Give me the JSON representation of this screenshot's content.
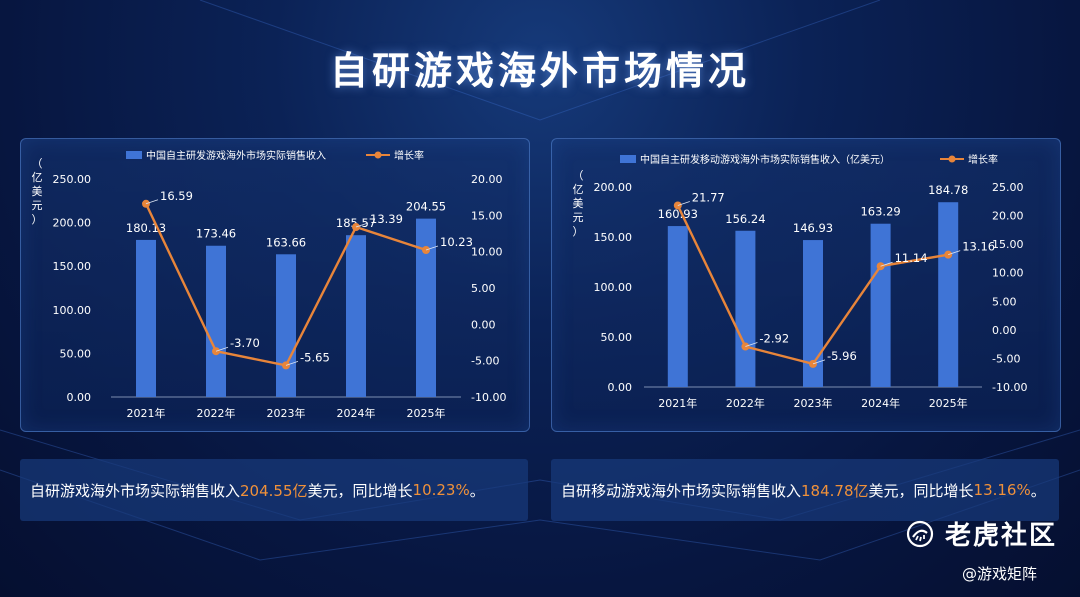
{
  "page": {
    "title": "自研游戏海外市场情况"
  },
  "chart_data": [
    {
      "type": "bar",
      "categories": [
        "2021年",
        "2022年",
        "2023年",
        "2024年",
        "2025年"
      ],
      "series": [
        {
          "name": "中国自主研发游戏海外市场实际销售收入",
          "type": "bar",
          "axis": "left",
          "values": [
            180.13,
            173.46,
            163.66,
            185.57,
            204.55
          ],
          "color": "#3f74d6"
        },
        {
          "name": "增长率",
          "type": "line",
          "axis": "right",
          "values": [
            16.59,
            -3.7,
            -5.65,
            13.39,
            10.23
          ],
          "color": "#e8853a"
        }
      ],
      "ylabel": "（亿美元）",
      "ylim": [
        0,
        250
      ],
      "yticks": [
        "0.00",
        "50.00",
        "100.00",
        "150.00",
        "200.00",
        "250.00"
      ],
      "y2lim": [
        -10,
        20
      ],
      "y2ticks": [
        "-10.00",
        "-5.00",
        "0.00",
        "5.00",
        "10.00",
        "15.00",
        "20.00"
      ],
      "bar_labels": [
        "180.13",
        "173.46",
        "163.66",
        "185.57",
        "204.55"
      ],
      "line_labels": [
        "16.59",
        "-3.70",
        "-5.65",
        "13.39",
        "10.23"
      ],
      "legend_position": "top"
    },
    {
      "type": "bar",
      "categories": [
        "2021年",
        "2022年",
        "2023年",
        "2024年",
        "2025年"
      ],
      "series": [
        {
          "name": "中国自主研发移动游戏海外市场实际销售收入（亿美元）",
          "type": "bar",
          "axis": "left",
          "values": [
            160.93,
            156.24,
            146.93,
            163.29,
            184.78
          ],
          "color": "#3f74d6"
        },
        {
          "name": "增长率",
          "type": "line",
          "axis": "right",
          "values": [
            21.77,
            -2.92,
            -5.96,
            11.14,
            13.16
          ],
          "color": "#e8853a"
        }
      ],
      "ylabel": "（亿美元）",
      "ylim": [
        0,
        200
      ],
      "yticks": [
        "0.00",
        "50.00",
        "100.00",
        "150.00",
        "200.00"
      ],
      "y2lim": [
        -10,
        25
      ],
      "y2ticks": [
        "-10.00",
        "-5.00",
        "0.00",
        "5.00",
        "10.00",
        "15.00",
        "20.00",
        "25.00"
      ],
      "bar_labels": [
        "160.93",
        "156.24",
        "146.93",
        "163.29",
        "184.78"
      ],
      "line_labels": [
        "21.77",
        "-2.92",
        "-5.96",
        "11.14",
        "13.16"
      ],
      "legend_position": "top"
    }
  ],
  "summaries": [
    {
      "pre": "自研游戏海外市场实际销售收入",
      "value": "204.55亿",
      "mid": "美元，同比增长",
      "rate": "10.23%",
      "post": "。"
    },
    {
      "pre": "自研移动游戏海外市场实际销售收入",
      "value": "184.78亿",
      "mid": "美元，同比增长",
      "rate": "13.16%",
      "post": "。"
    }
  ],
  "watermark": {
    "icon": "tiger-community-icon",
    "brand": "老虎社区",
    "handle": "@游戏矩阵"
  }
}
